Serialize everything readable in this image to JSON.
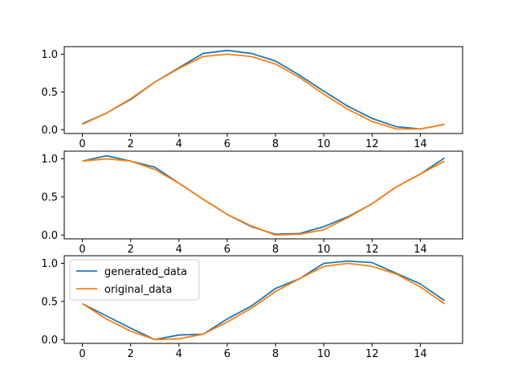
{
  "chart_data": [
    {
      "type": "line",
      "x": [
        0,
        1,
        2,
        3,
        4,
        5,
        6,
        7,
        8,
        9,
        10,
        11,
        12,
        13,
        14,
        15
      ],
      "series": [
        {
          "values": [
            0.08,
            0.22,
            0.4,
            0.63,
            0.82,
            1.01,
            1.05,
            1.01,
            0.91,
            0.72,
            0.51,
            0.31,
            0.15,
            0.04,
            0.01,
            0.07
          ]
        },
        {
          "values": [
            0.07,
            0.22,
            0.41,
            0.63,
            0.81,
            0.97,
            1.0,
            0.97,
            0.87,
            0.69,
            0.47,
            0.27,
            0.11,
            0.01,
            0.01,
            0.07
          ]
        }
      ],
      "xlim": [
        -0.75,
        15.75
      ],
      "ylim": [
        -0.05,
        1.1
      ],
      "xticks": [
        "0",
        "2",
        "4",
        "6",
        "8",
        "10",
        "12",
        "14"
      ],
      "yticks": [
        "0.0",
        "0.5",
        "1.0"
      ],
      "legend": false,
      "grid": false
    },
    {
      "type": "line",
      "x": [
        0,
        1,
        2,
        3,
        4,
        5,
        6,
        7,
        8,
        9,
        10,
        11,
        12,
        13,
        14,
        15
      ],
      "series": [
        {
          "values": [
            0.97,
            1.04,
            0.97,
            0.89,
            0.68,
            0.47,
            0.27,
            0.11,
            0.01,
            0.02,
            0.11,
            0.24,
            0.41,
            0.63,
            0.8,
            1.01
          ]
        },
        {
          "values": [
            0.97,
            1.0,
            0.97,
            0.86,
            0.68,
            0.47,
            0.27,
            0.12,
            0.0,
            0.01,
            0.07,
            0.23,
            0.41,
            0.63,
            0.8,
            0.97
          ]
        }
      ],
      "xlim": [
        -0.75,
        15.75
      ],
      "ylim": [
        -0.05,
        1.1
      ],
      "xticks": [
        "0",
        "2",
        "4",
        "6",
        "8",
        "10",
        "12",
        "14"
      ],
      "yticks": [
        "0.0",
        "0.5",
        "1.0"
      ],
      "legend": false,
      "grid": false
    },
    {
      "type": "line",
      "x": [
        0,
        1,
        2,
        3,
        4,
        5,
        6,
        7,
        8,
        9,
        10,
        11,
        12,
        13,
        14,
        15
      ],
      "series": [
        {
          "name": "generated_data",
          "values": [
            0.47,
            0.31,
            0.15,
            0.0,
            0.06,
            0.07,
            0.27,
            0.44,
            0.67,
            0.8,
            1.0,
            1.03,
            1.01,
            0.87,
            0.73,
            0.51
          ]
        },
        {
          "name": "original_data",
          "values": [
            0.47,
            0.27,
            0.11,
            0.0,
            0.01,
            0.07,
            0.23,
            0.41,
            0.63,
            0.8,
            0.96,
            1.0,
            0.96,
            0.86,
            0.69,
            0.47
          ]
        }
      ],
      "xlim": [
        -0.75,
        15.75
      ],
      "ylim": [
        -0.05,
        1.1
      ],
      "xticks": [
        "0",
        "2",
        "4",
        "6",
        "8",
        "10",
        "12",
        "14"
      ],
      "yticks": [
        "0.0",
        "0.5",
        "1.0"
      ],
      "legend": true,
      "legend_position": "upper-left",
      "grid": false
    }
  ],
  "colors": {
    "generated_data": "#1f77b4",
    "original_data": "#ff7f0e",
    "axes": "#000000",
    "background": "#ffffff"
  }
}
